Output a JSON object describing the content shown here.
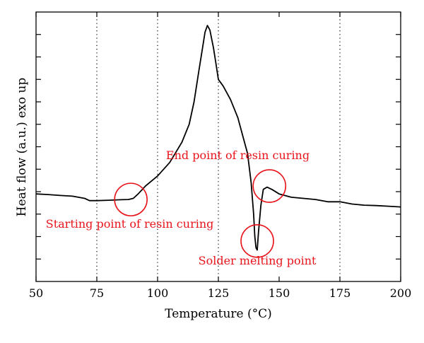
{
  "chart_data": {
    "type": "line",
    "xlabel": "Temperature (°C)",
    "ylabel": "Heat flow (a.u.) exo up",
    "xlim": [
      50,
      200
    ],
    "ylim": [
      0,
      12
    ],
    "x_ticks": [
      50,
      75,
      100,
      125,
      150,
      175,
      200
    ],
    "y_ticks_labeled": false,
    "y_minor_tick_count": 12,
    "grid": "vertical dotted lines at 75, 100, 125, 175",
    "grid_x": [
      75,
      100,
      125,
      175
    ],
    "series": [
      {
        "color": "#000000",
        "points": [
          [
            50,
            3.9
          ],
          [
            55,
            3.87
          ],
          [
            60,
            3.83
          ],
          [
            65,
            3.8
          ],
          [
            70,
            3.7
          ],
          [
            72,
            3.6
          ],
          [
            75,
            3.6
          ],
          [
            80,
            3.62
          ],
          [
            85,
            3.64
          ],
          [
            88,
            3.65
          ],
          [
            90,
            3.7
          ],
          [
            92,
            3.9
          ],
          [
            95,
            4.25
          ],
          [
            100,
            4.7
          ],
          [
            105,
            5.3
          ],
          [
            110,
            6.2
          ],
          [
            113,
            7.0
          ],
          [
            115,
            8.0
          ],
          [
            117,
            9.4
          ],
          [
            118.5,
            10.4
          ],
          [
            119.5,
            11.1
          ],
          [
            120.5,
            11.4
          ],
          [
            121.5,
            11.2
          ],
          [
            123,
            10.4
          ],
          [
            124,
            9.7
          ],
          [
            125,
            9.0
          ],
          [
            127,
            8.7
          ],
          [
            130,
            8.1
          ],
          [
            133,
            7.3
          ],
          [
            135,
            6.5
          ],
          [
            137,
            5.7
          ],
          [
            138.5,
            4.4
          ],
          [
            139.5,
            3.0
          ],
          [
            140,
            2.0
          ],
          [
            140.5,
            1.5
          ],
          [
            141,
            1.4
          ],
          [
            141.5,
            2.2
          ],
          [
            142.5,
            3.4
          ],
          [
            143.5,
            4.1
          ],
          [
            145,
            4.2
          ],
          [
            147,
            4.1
          ],
          [
            150,
            3.9
          ],
          [
            155,
            3.75
          ],
          [
            160,
            3.7
          ],
          [
            165,
            3.65
          ],
          [
            170,
            3.55
          ],
          [
            175,
            3.55
          ],
          [
            180,
            3.45
          ],
          [
            185,
            3.4
          ],
          [
            190,
            3.38
          ],
          [
            195,
            3.35
          ],
          [
            200,
            3.32
          ]
        ]
      }
    ],
    "annotations": [
      {
        "text": "Starting point of resin curing",
        "circle": [
          89,
          3.65
        ],
        "label_at": [
          54,
          2.4
        ],
        "anchor": "start"
      },
      {
        "text": "Solder melting point",
        "circle": [
          141,
          1.8
        ],
        "label_at": [
          141,
          0.75
        ],
        "anchor": "middle"
      },
      {
        "text": "End point of resin curing",
        "circle": [
          146,
          4.25
        ],
        "label_at": [
          133,
          5.45
        ],
        "anchor": "middle"
      }
    ],
    "annotation_color": "#e8141b"
  }
}
